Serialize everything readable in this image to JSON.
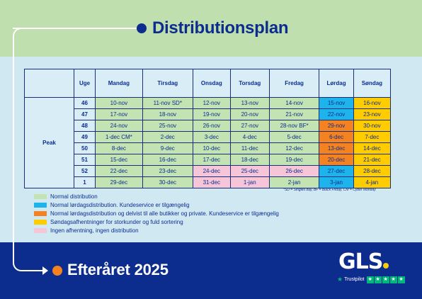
{
  "header": {
    "title": "Distributionsplan"
  },
  "footer": {
    "title": "Efteråret 2025"
  },
  "table": {
    "columns": [
      "Uge",
      "Mandag",
      "Tirsdag",
      "Onsdag",
      "Torsdag",
      "Fredag",
      "Lørdag",
      "Søndag"
    ],
    "section_label": "Peak",
    "rows": [
      {
        "week": "46",
        "cells": [
          "10-nov",
          "11-nov SD*",
          "12-nov",
          "13-nov",
          "14-nov",
          "15-nov",
          "16-nov"
        ],
        "colors": [
          "green",
          "green",
          "green",
          "green",
          "green",
          "blue",
          "yellow"
        ]
      },
      {
        "week": "47",
        "cells": [
          "17-nov",
          "18-nov",
          "19-nov",
          "20-nov",
          "21-nov",
          "22-nov",
          "23-nov"
        ],
        "colors": [
          "green",
          "green",
          "green",
          "green",
          "green",
          "blue",
          "yellow"
        ]
      },
      {
        "week": "48",
        "cells": [
          "24-nov",
          "25-nov",
          "26-nov",
          "27-nov",
          "28-nov BF*",
          "29-nov",
          "30-nov"
        ],
        "colors": [
          "green",
          "green",
          "green",
          "green",
          "green",
          "orange",
          "yellow"
        ]
      },
      {
        "week": "49",
        "cells": [
          "1-dec CM*",
          "2-dec",
          "3-dec",
          "4-dec",
          "5-dec",
          "6-dec",
          "7-dec"
        ],
        "colors": [
          "green",
          "green",
          "green",
          "green",
          "green",
          "orange",
          "yellow"
        ]
      },
      {
        "week": "50",
        "cells": [
          "8-dec",
          "9-dec",
          "10-dec",
          "11-dec",
          "12-dec",
          "13-dec",
          "14-dec"
        ],
        "colors": [
          "green",
          "green",
          "green",
          "green",
          "green",
          "orange",
          "yellow"
        ]
      },
      {
        "week": "51",
        "cells": [
          "15-dec",
          "16-dec",
          "17-dec",
          "18-dec",
          "19-dec",
          "20-dec",
          "21-dec"
        ],
        "colors": [
          "green",
          "green",
          "green",
          "green",
          "green",
          "orange",
          "yellow"
        ]
      },
      {
        "week": "52",
        "cells": [
          "22-dec",
          "23-dec",
          "24-dec",
          "25-dec",
          "26-dec",
          "27-dec",
          "28-dec"
        ],
        "colors": [
          "green",
          "green",
          "pink",
          "pink",
          "pink",
          "blue",
          "yellow"
        ]
      },
      {
        "week": "1",
        "cells": [
          "29-dec",
          "30-dec",
          "31-dec",
          "1-jan",
          "2-jan",
          "3-jan",
          "4-jan"
        ],
        "colors": [
          "green",
          "green",
          "pink",
          "pink",
          "green",
          "blue",
          "yellow"
        ]
      }
    ]
  },
  "footnote": "*SD = Singles day, BF = Black Friday, CM = Cyber Monday",
  "legend": [
    {
      "color": "green",
      "label": "Normal distribution"
    },
    {
      "color": "blue",
      "label": "Normal lørdagsdistribution. Kundeservice er tilgængelig"
    },
    {
      "color": "orange",
      "label": "Normal lørdagsdistribution og delvist til alle butikker og private. Kundeservice er tilgængelig"
    },
    {
      "color": "yellow",
      "label": "Søndagsafhentninger for storkunder og fuld sortering"
    },
    {
      "color": "pink",
      "label": "Ingen afhentning, ingen distribution"
    }
  ],
  "colors": {
    "green": "#c3e3b2",
    "blue": "#1cb4ea",
    "orange": "#f58220",
    "yellow": "#ffcc00",
    "pink": "#f6c6d8",
    "navy": "#0d2d8e"
  },
  "brand": {
    "logo": "GLS",
    "trustpilot": "Trustpilot",
    "logo_icon": "gls-logo",
    "trust_icon": "trustpilot-star-icon"
  }
}
